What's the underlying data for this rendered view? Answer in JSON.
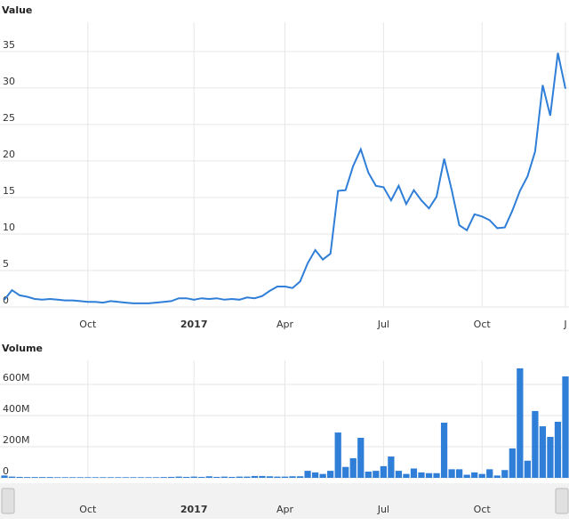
{
  "chart_data": [
    {
      "type": "line",
      "title": "Value",
      "color": "#2f7ed8",
      "categories": [
        null,
        null,
        null,
        null,
        null,
        null,
        null,
        null,
        null,
        null,
        null,
        "Oct",
        null,
        null,
        null,
        null,
        null,
        null,
        null,
        null,
        null,
        null,
        null,
        null,
        null,
        "2017",
        null,
        null,
        null,
        null,
        null,
        null,
        null,
        null,
        null,
        null,
        null,
        "Apr",
        null,
        null,
        null,
        null,
        null,
        null,
        null,
        null,
        null,
        null,
        null,
        null,
        "Jul",
        null,
        null,
        null,
        null,
        null,
        null,
        null,
        null,
        null,
        null,
        null,
        null,
        "Oct",
        null,
        null,
        null,
        null,
        null,
        null,
        null,
        null,
        null,
        null,
        "J"
      ],
      "values": [
        1.0,
        2.3,
        1.6,
        1.4,
        1.1,
        1.0,
        1.1,
        1.0,
        0.9,
        0.9,
        0.8,
        0.7,
        0.7,
        0.6,
        0.8,
        0.7,
        0.6,
        0.5,
        0.5,
        0.5,
        0.6,
        0.7,
        0.8,
        1.2,
        1.2,
        1.0,
        1.2,
        1.1,
        1.2,
        1.0,
        1.1,
        1.0,
        1.3,
        1.2,
        1.5,
        2.2,
        2.8,
        2.8,
        2.6,
        3.5,
        6.0,
        7.8,
        6.5,
        7.3,
        15.9,
        16.0,
        19.3,
        21.6,
        18.4,
        16.6,
        16.4,
        14.6,
        16.6,
        14.1,
        16.0,
        14.6,
        13.5,
        15.1,
        20.3,
        16.0,
        11.2,
        10.5,
        12.7,
        12.4,
        11.9,
        10.8,
        10.9,
        13.2,
        15.9,
        17.9,
        21.3,
        30.4,
        26.2,
        34.8,
        29.9
      ],
      "ylim": [
        0,
        39
      ],
      "yticks": [
        0,
        5,
        10,
        15,
        20,
        25,
        30,
        35
      ],
      "grid": true
    },
    {
      "type": "bar",
      "title": "Volume",
      "color": "#2f7ed8",
      "categories": [
        null,
        null,
        null,
        null,
        null,
        null,
        null,
        null,
        null,
        null,
        null,
        "Oct",
        null,
        null,
        null,
        null,
        null,
        null,
        null,
        null,
        null,
        null,
        null,
        null,
        null,
        "2017",
        null,
        null,
        null,
        null,
        null,
        null,
        null,
        null,
        null,
        null,
        null,
        "Apr",
        null,
        null,
        null,
        null,
        null,
        null,
        null,
        null,
        null,
        null,
        null,
        null,
        "Jul",
        null,
        null,
        null,
        null,
        null,
        null,
        null,
        null,
        null,
        null,
        null,
        null,
        "Oct",
        null,
        null,
        null,
        null,
        null,
        null,
        null,
        null,
        null,
        null,
        null
      ],
      "values": [
        15,
        8,
        6,
        5,
        5,
        5,
        5,
        4,
        4,
        4,
        4,
        4,
        4,
        4,
        4,
        4,
        4,
        4,
        4,
        4,
        4,
        5,
        6,
        8,
        6,
        8,
        6,
        10,
        6,
        8,
        6,
        8,
        8,
        12,
        12,
        10,
        8,
        8,
        10,
        10,
        45,
        35,
        25,
        45,
        291,
        70,
        126,
        257,
        40,
        45,
        75,
        137,
        45,
        25,
        60,
        35,
        30,
        30,
        354,
        55,
        55,
        20,
        35,
        25,
        55,
        15,
        50,
        189,
        703,
        110,
        429,
        331,
        263,
        360,
        651
      ],
      "ylim": [
        0,
        754
      ],
      "yticks": [
        0,
        {
          "value": 200,
          "label": "200M"
        },
        {
          "value": 400,
          "label": "400M"
        },
        {
          "value": 600,
          "label": "600M"
        }
      ],
      "grid": true
    }
  ]
}
